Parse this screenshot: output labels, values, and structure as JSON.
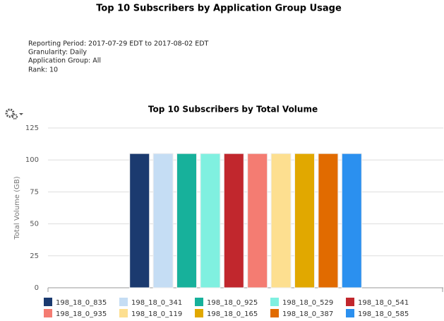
{
  "header": {
    "title": "Top 10 Subscribers by Application Group Usage",
    "details": [
      "Reporting Period: 2017-07-29 EDT to 2017-08-02 EDT",
      "Granularity: Daily",
      "Application Group: All",
      "Rank: 10"
    ]
  },
  "chart_data": {
    "type": "bar",
    "title": "Top 10 Subscribers by Total Volume",
    "y_label": "Total Volume (GB)",
    "series": [
      {
        "name": "198_18_0_835",
        "color": "#1b3a6f",
        "values": [
          105
        ]
      },
      {
        "name": "198_18_0_341",
        "color": "#c5ddf4",
        "values": [
          105
        ]
      },
      {
        "name": "198_18_0_925",
        "color": "#17b19b",
        "values": [
          105
        ]
      },
      {
        "name": "198_18_0_529",
        "color": "#80f0e0",
        "values": [
          105
        ]
      },
      {
        "name": "198_18_0_541",
        "color": "#c1272d",
        "values": [
          105
        ]
      },
      {
        "name": "198_18_0_935",
        "color": "#f47c72",
        "values": [
          105
        ]
      },
      {
        "name": "198_18_0_119",
        "color": "#fddf90",
        "values": [
          105
        ]
      },
      {
        "name": "198_18_0_165",
        "color": "#e1a800",
        "values": [
          105
        ]
      },
      {
        "name": "198_18_0_387",
        "color": "#e16b00",
        "values": [
          105
        ]
      },
      {
        "name": "198_18_0_585",
        "color": "#2b90ef",
        "values": [
          105
        ]
      }
    ],
    "ylim": [
      0,
      125
    ],
    "yticks": [
      0,
      25,
      50,
      75,
      100,
      125
    ],
    "grid": true
  }
}
